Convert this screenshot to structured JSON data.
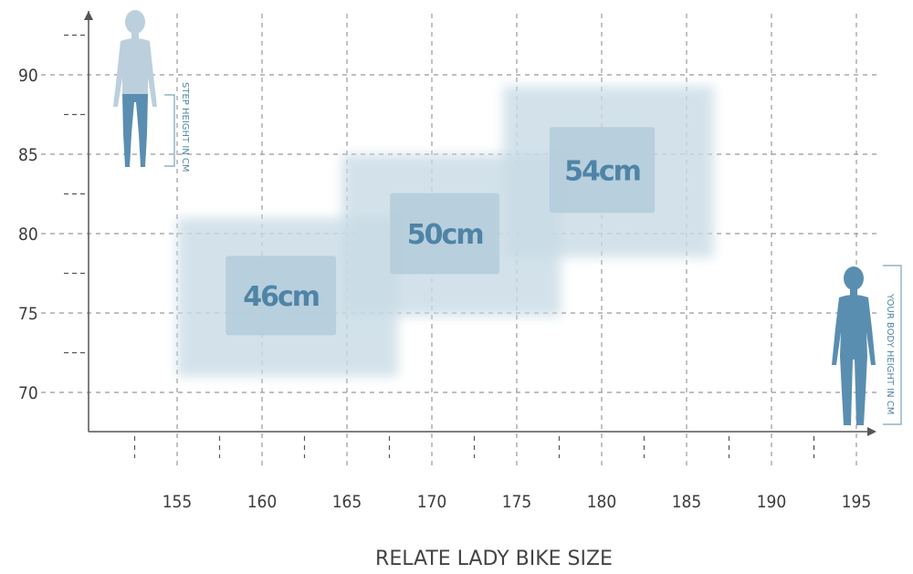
{
  "chart_data": {
    "type": "heatmap",
    "title": "RELATE LADY BIKE SIZE",
    "xlabel": "YOUR BODY HEIGHT IN CM",
    "ylabel": "STEP HEIGHT IN CM",
    "xlim": [
      145,
      198
    ],
    "ylim": [
      67.5,
      95
    ],
    "xticks": [
      155,
      160,
      165,
      170,
      175,
      180,
      185,
      190,
      195
    ],
    "yticks": [
      70,
      75,
      80,
      85,
      90
    ],
    "grid": true,
    "regions": [
      {
        "label": "46cm",
        "x": [
          155,
          168
        ],
        "y": [
          71,
          81
        ]
      },
      {
        "label": "50cm",
        "x": [
          164.7,
          177.6
        ],
        "y": [
          74.8,
          85
        ]
      },
      {
        "label": "54cm",
        "x": [
          174.2,
          186.6
        ],
        "y": [
          78.5,
          89.3
        ]
      }
    ],
    "colors": {
      "region": "#c9dbe6",
      "region_inner": "#b3cbda",
      "label": "#4f84a6",
      "figure_light": "#bccfdd",
      "figure_dark": "#5a8eb0"
    }
  }
}
